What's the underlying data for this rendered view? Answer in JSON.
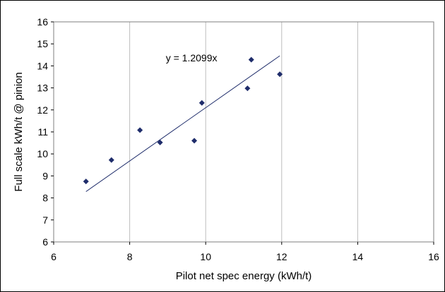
{
  "chart_data": {
    "type": "scatter",
    "title": "",
    "xlabel": "Pilot net spec energy (kWh/t)",
    "ylabel": "Full scale kWh/t @ pinion",
    "xlim": [
      6,
      16
    ],
    "ylim": [
      6,
      16
    ],
    "x_ticks": [
      "6",
      "8",
      "10",
      "12",
      "14",
      "16"
    ],
    "y_ticks": [
      "6",
      "7",
      "8",
      "9",
      "10",
      "11",
      "12",
      "13",
      "14",
      "15",
      "16"
    ],
    "grid": "vertical",
    "colors": {
      "marker": "#1f2d6b",
      "trendline": "#1f2d6b",
      "grid": "#bdbdbd",
      "frame": "#7f7f7f"
    },
    "series": [
      {
        "points": [
          {
            "x": 6.85,
            "y": 8.75
          },
          {
            "x": 7.52,
            "y": 9.72
          },
          {
            "x": 8.27,
            "y": 11.08
          },
          {
            "x": 8.8,
            "y": 10.52
          },
          {
            "x": 9.7,
            "y": 10.6
          },
          {
            "x": 9.9,
            "y": 12.32
          },
          {
            "x": 11.1,
            "y": 12.98
          },
          {
            "x": 11.2,
            "y": 14.28
          },
          {
            "x": 11.95,
            "y": 13.62
          }
        ]
      }
    ],
    "trendline": {
      "slope": 1.2099,
      "x_range": [
        6.85,
        11.95
      ],
      "label": "y = 1.2099x",
      "label_at": {
        "x": 8.95,
        "y": 14.2
      }
    }
  }
}
